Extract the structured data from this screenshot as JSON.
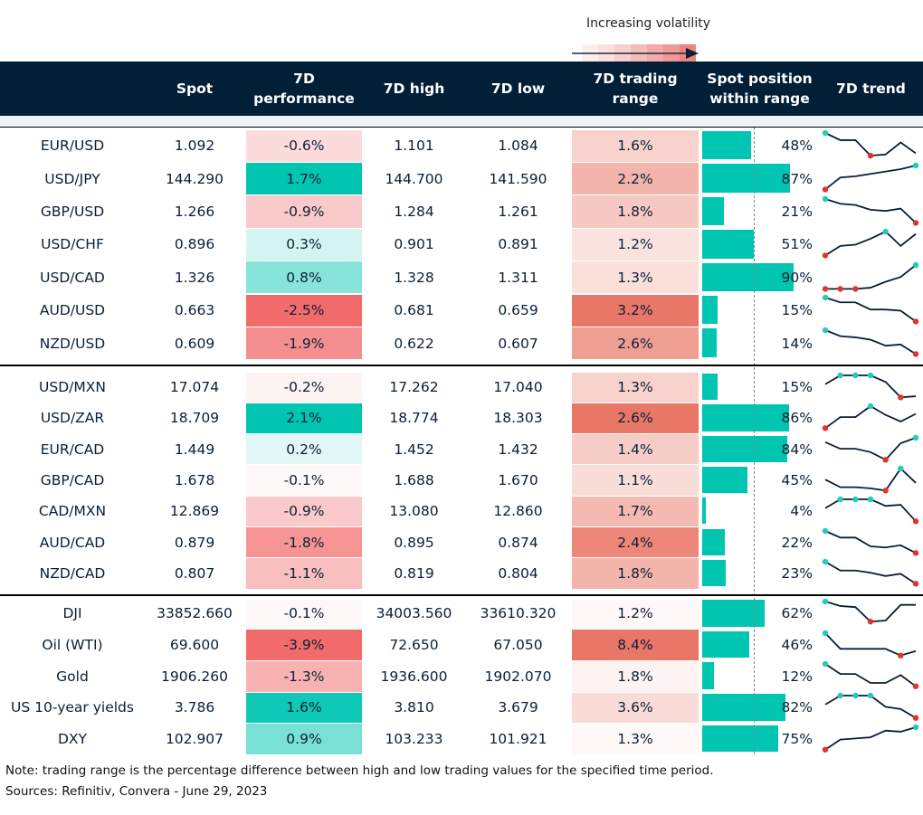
{
  "legend": {
    "label": "Increasing volatility",
    "gradient": [
      "#fdeeee",
      "#fbe0e0",
      "#f8cfcf",
      "#f5bcbc",
      "#f2aaaa",
      "#ee9898",
      "#eb8585"
    ]
  },
  "headers": {
    "spot": "Spot",
    "perf": "7D\nperformance",
    "high": "7D high",
    "low": "7D low",
    "range": "7D trading\nrange",
    "position": "Spot position\nwithin range",
    "trend": "7D trend"
  },
  "colors": {
    "header_bg": "#021f38",
    "bar": "#00c5b0",
    "positive": "#00c5b0",
    "negative": "#f26b6b",
    "range": "#e8705f",
    "max_marker": "#1fcfb4",
    "min_marker": "#e0352b",
    "spark_line": "#0b1f35"
  },
  "groups": [
    {
      "rows": [
        {
          "pair": "EUR/USD",
          "spot": "1.092",
          "perf": "-0.6%",
          "perf_value": -0.6,
          "high": "1.101",
          "low": "1.084",
          "range": "1.6%",
          "range_value": 1.6,
          "position": "48%",
          "position_value": 48,
          "trend": [
            1,
            0.7,
            0.7,
            0.05,
            0.1,
            0.6,
            0.15
          ]
        },
        {
          "pair": "USD/JPY",
          "spot": "144.290",
          "perf": "1.7%",
          "perf_value": 1.7,
          "high": "144.700",
          "low": "141.590",
          "range": "2.2%",
          "range_value": 2.2,
          "position": "87%",
          "position_value": 87,
          "trend": [
            0,
            0.5,
            0.55,
            0.65,
            0.75,
            0.85,
            1
          ]
        },
        {
          "pair": "GBP/USD",
          "spot": "1.266",
          "perf": "-0.9%",
          "perf_value": -0.9,
          "high": "1.284",
          "low": "1.261",
          "range": "1.8%",
          "range_value": 1.8,
          "position": "21%",
          "position_value": 21,
          "trend": [
            1,
            0.8,
            0.75,
            0.55,
            0.5,
            0.6,
            0
          ]
        },
        {
          "pair": "USD/CHF",
          "spot": "0.896",
          "perf": "0.3%",
          "perf_value": 0.3,
          "high": "0.901",
          "low": "0.891",
          "range": "1.2%",
          "range_value": 1.2,
          "position": "51%",
          "position_value": 51,
          "trend": [
            0,
            0.4,
            0.45,
            0.7,
            1,
            0.4,
            0.9
          ]
        },
        {
          "pair": "USD/CAD",
          "spot": "1.326",
          "perf": "0.8%",
          "perf_value": 0.8,
          "high": "1.328",
          "low": "1.311",
          "range": "1.3%",
          "range_value": 1.3,
          "position": "90%",
          "position_value": 90,
          "trend": [
            0,
            0,
            0,
            0.05,
            0.3,
            0.5,
            1
          ]
        },
        {
          "pair": "AUD/USD",
          "spot": "0.663",
          "perf": "-2.5%",
          "perf_value": -2.5,
          "high": "0.681",
          "low": "0.659",
          "range": "3.2%",
          "range_value": 3.2,
          "position": "15%",
          "position_value": 15,
          "trend": [
            1,
            0.8,
            0.8,
            0.5,
            0.5,
            0.45,
            0
          ]
        },
        {
          "pair": "NZD/USD",
          "spot": "0.609",
          "perf": "-1.9%",
          "perf_value": -1.9,
          "high": "0.622",
          "low": "0.607",
          "range": "2.6%",
          "range_value": 2.6,
          "position": "14%",
          "position_value": 14,
          "trend": [
            1,
            0.75,
            0.7,
            0.6,
            0.35,
            0.4,
            0
          ]
        }
      ]
    },
    {
      "rows": [
        {
          "pair": "USD/MXN",
          "spot": "17.074",
          "perf": "-0.2%",
          "perf_value": -0.2,
          "high": "17.262",
          "low": "17.040",
          "range": "1.3%",
          "range_value": 1.3,
          "position": "15%",
          "position_value": 15,
          "trend": [
            0.6,
            1,
            1,
            1,
            0.7,
            0,
            0.05
          ]
        },
        {
          "pair": "USD/ZAR",
          "spot": "18.709",
          "perf": "2.1%",
          "perf_value": 2.1,
          "high": "18.774",
          "low": "18.303",
          "range": "2.6%",
          "range_value": 2.6,
          "position": "86%",
          "position_value": 86,
          "trend": [
            0,
            0.5,
            0.5,
            1,
            0.6,
            0.3,
            0.65
          ]
        },
        {
          "pair": "EUR/CAD",
          "spot": "1.449",
          "perf": "0.2%",
          "perf_value": 0.2,
          "high": "1.452",
          "low": "1.432",
          "range": "1.4%",
          "range_value": 1.4,
          "position": "84%",
          "position_value": 84,
          "trend": [
            0.8,
            0.5,
            0.5,
            0.35,
            0,
            0.75,
            1
          ]
        },
        {
          "pair": "GBP/CAD",
          "spot": "1.678",
          "perf": "-0.1%",
          "perf_value": -0.1,
          "high": "1.688",
          "low": "1.670",
          "range": "1.1%",
          "range_value": 1.1,
          "position": "45%",
          "position_value": 45,
          "trend": [
            0.5,
            0.15,
            0.15,
            0.1,
            0,
            1,
            0.35
          ]
        },
        {
          "pair": "CAD/MXN",
          "spot": "12.869",
          "perf": "-0.9%",
          "perf_value": -0.9,
          "high": "13.080",
          "low": "12.860",
          "range": "1.7%",
          "range_value": 1.7,
          "position": "4%",
          "position_value": 4,
          "trend": [
            0.6,
            1,
            1,
            1,
            0.7,
            0.75,
            0
          ]
        },
        {
          "pair": "AUD/CAD",
          "spot": "0.879",
          "perf": "-1.8%",
          "perf_value": -1.8,
          "high": "0.895",
          "low": "0.874",
          "range": "2.4%",
          "range_value": 2.4,
          "position": "22%",
          "position_value": 22,
          "trend": [
            1,
            0.7,
            0.7,
            0.3,
            0.25,
            0.35,
            0
          ]
        },
        {
          "pair": "NZD/CAD",
          "spot": "0.807",
          "perf": "-1.1%",
          "perf_value": -1.1,
          "high": "0.819",
          "low": "0.804",
          "range": "1.8%",
          "range_value": 1.8,
          "position": "23%",
          "position_value": 23,
          "trend": [
            1,
            0.6,
            0.6,
            0.5,
            0.35,
            0.45,
            0
          ]
        }
      ]
    },
    {
      "rows": [
        {
          "pair": "DJI",
          "spot": "33852.660",
          "perf": "-0.1%",
          "perf_value": -0.1,
          "high": "34003.560",
          "low": "33610.320",
          "range": "1.2%",
          "range_value": 1.2,
          "position": "62%",
          "position_value": 62,
          "trend": [
            1,
            0.8,
            0.75,
            0.1,
            0.15,
            0.85,
            0.85
          ]
        },
        {
          "pair": "Oil (WTI)",
          "spot": "69.600",
          "perf": "-3.9%",
          "perf_value": -3.9,
          "high": "72.650",
          "low": "67.050",
          "range": "8.4%",
          "range_value": 8.4,
          "position": "46%",
          "position_value": 46,
          "trend": [
            1,
            0.3,
            0.3,
            0.3,
            0.3,
            0,
            0.2
          ]
        },
        {
          "pair": "Gold",
          "spot": "1906.260",
          "perf": "-1.3%",
          "perf_value": -1.3,
          "high": "1936.600",
          "low": "1902.070",
          "range": "1.8%",
          "range_value": 1.8,
          "position": "12%",
          "position_value": 12,
          "trend": [
            1,
            0.55,
            0.55,
            0.15,
            0.15,
            0.5,
            0
          ]
        },
        {
          "pair": "US 10-year yields",
          "spot": "3.786",
          "perf": "1.6%",
          "perf_value": 1.6,
          "high": "3.810",
          "low": "3.679",
          "range": "3.6%",
          "range_value": 3.6,
          "position": "82%",
          "position_value": 82,
          "trend": [
            0.6,
            1,
            1,
            1,
            0.5,
            0.4,
            0
          ]
        },
        {
          "pair": "DXY",
          "spot": "102.907",
          "perf": "0.9%",
          "perf_value": 0.9,
          "high": "103.233",
          "low": "101.921",
          "range": "1.3%",
          "range_value": 1.3,
          "position": "75%",
          "position_value": 75,
          "trend": [
            0,
            0.45,
            0.5,
            0.55,
            0.85,
            0.8,
            1
          ]
        }
      ]
    }
  ],
  "notes": {
    "note": "Note: trading range is the percentage difference between high and low trading values for the specified time period.",
    "sources": "Sources: Refinitiv, Convera - June 29, 2023"
  }
}
